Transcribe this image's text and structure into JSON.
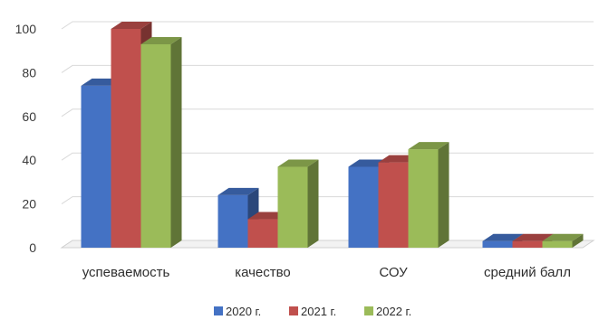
{
  "chart_data": {
    "type": "bar",
    "title": "",
    "xlabel": "",
    "ylabel": "",
    "ylim": [
      0,
      100
    ],
    "yticks": [
      0,
      20,
      40,
      60,
      80,
      100
    ],
    "grid": true,
    "legend_position": "bottom",
    "categories": [
      "успеваемость",
      "качество",
      "СОУ",
      "средний балл"
    ],
    "series": [
      {
        "name": "2020 г.",
        "color": "#4472C4",
        "values": [
          74,
          24,
          37,
          3
        ]
      },
      {
        "name": "2021 г.",
        "color": "#C0504D",
        "values": [
          100,
          13,
          39,
          3
        ]
      },
      {
        "name": "2022 г.",
        "color": "#9BBB59",
        "values": [
          93,
          37,
          45,
          3
        ]
      }
    ]
  }
}
